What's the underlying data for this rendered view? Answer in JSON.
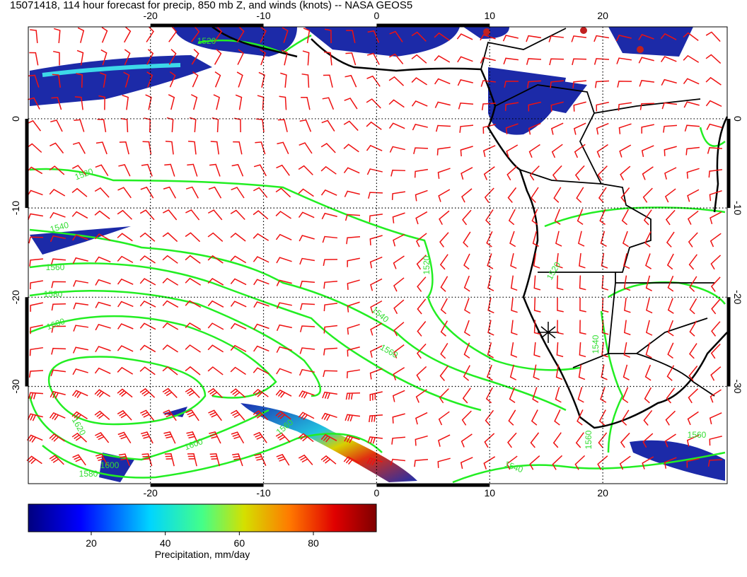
{
  "map": {
    "title": "15071418, 114 hour forecast for precip, 850 mb Z, and winds (knots) -- NASA GEOS5",
    "lonlim": [
      -30.8,
      31
    ],
    "latlim": [
      -40.9,
      10.3
    ],
    "lon_ticks": [
      -20,
      -10,
      0,
      10,
      20
    ],
    "lat_ticks": [
      0,
      -10,
      -20,
      -30
    ],
    "contour_labels": [
      1520,
      1540,
      1560,
      1580,
      1600,
      1620,
      1600,
      1580,
      1600,
      1560,
      1520,
      1540,
      1560,
      1540,
      1520,
      1560,
      1560,
      1540,
      1520
    ],
    "colorbar": {
      "lim": [
        3,
        97
      ],
      "ticks": [
        20,
        40,
        60,
        80
      ],
      "label": "Precipitation, mm/day"
    }
  }
}
